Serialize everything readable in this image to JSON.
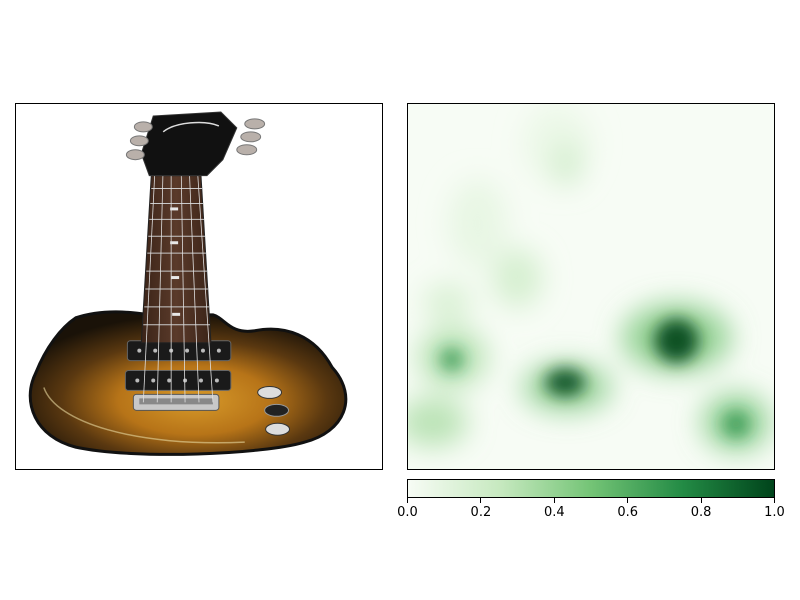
{
  "image_panel": {
    "description_icon": "electric-guitar-icon"
  },
  "heatmap": {
    "colormap": [
      "#f7fcf5",
      "#c7e9c0",
      "#74c476",
      "#238b45",
      "#00441b"
    ]
  },
  "colorbar": {
    "ticks": [
      "0.0",
      "0.2",
      "0.4",
      "0.6",
      "0.8",
      "1.0"
    ],
    "min": 0,
    "max": 1
  }
}
